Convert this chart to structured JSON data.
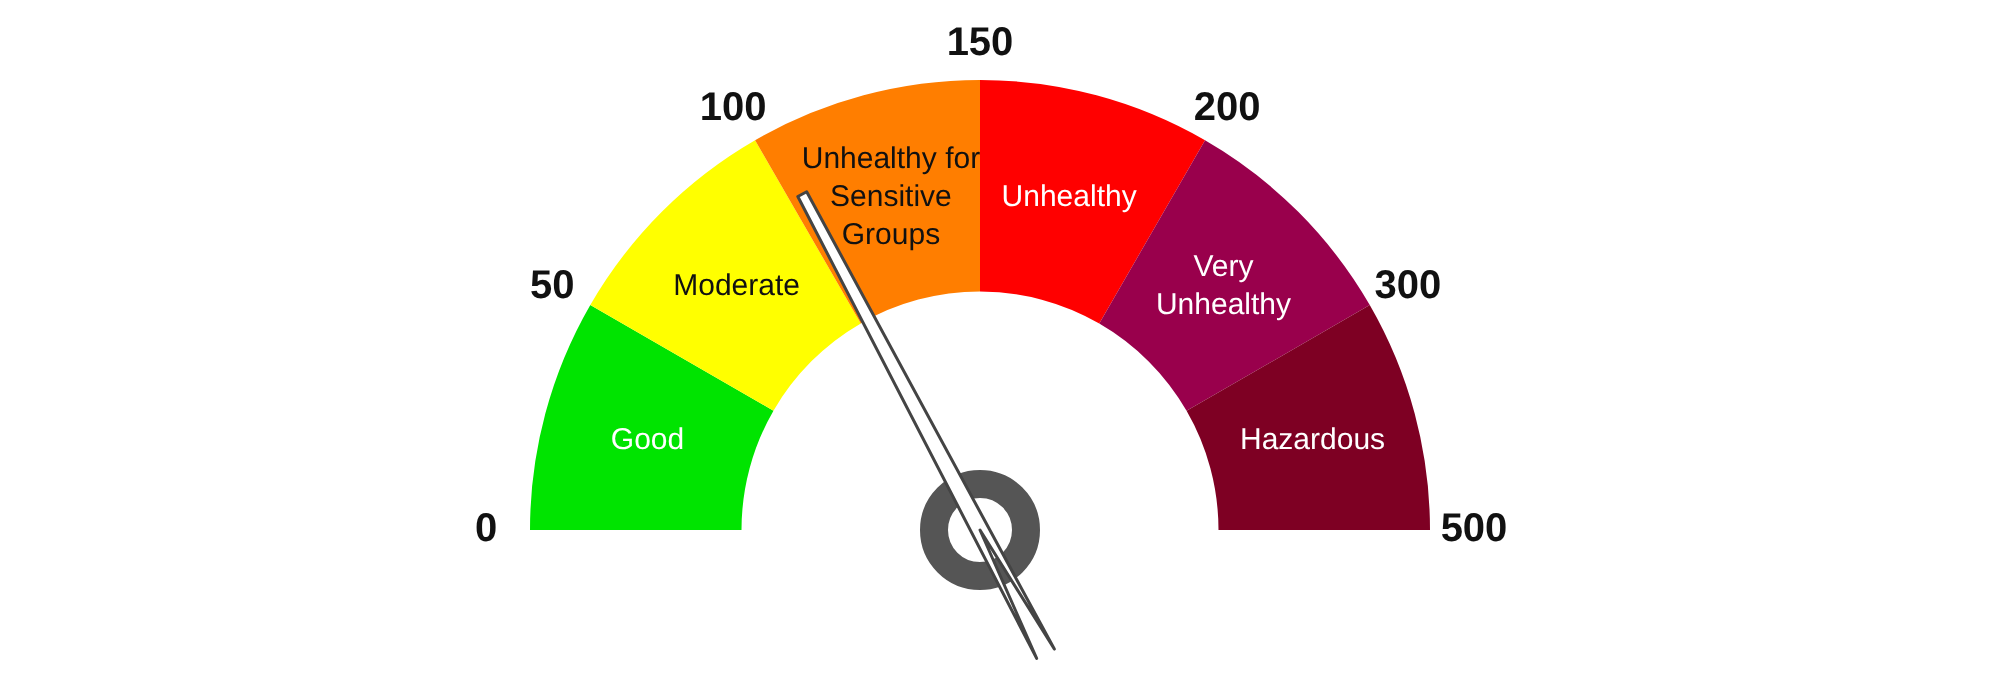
{
  "chart_data": {
    "type": "donut",
    "categories": [
      "Good",
      "Moderate",
      "Unhealthy for Sensitive Groups",
      "Unhealthy",
      "Very Unhealthy",
      "Hazardous"
    ],
    "values": [
      16.67,
      16.67,
      16.66,
      16.67,
      16.67,
      16.66
    ],
    "colors": [
      "#00e400",
      "#ffff00",
      "#ff7e00",
      "#ff0000",
      "#99004c",
      "#7e0023"
    ],
    "needle": "Unhealthy for Sensitive Groups",
    "annotations": [
      "0",
      "50",
      "100",
      "150",
      "200",
      "300",
      "500"
    ],
    "legend": false
  }
}
